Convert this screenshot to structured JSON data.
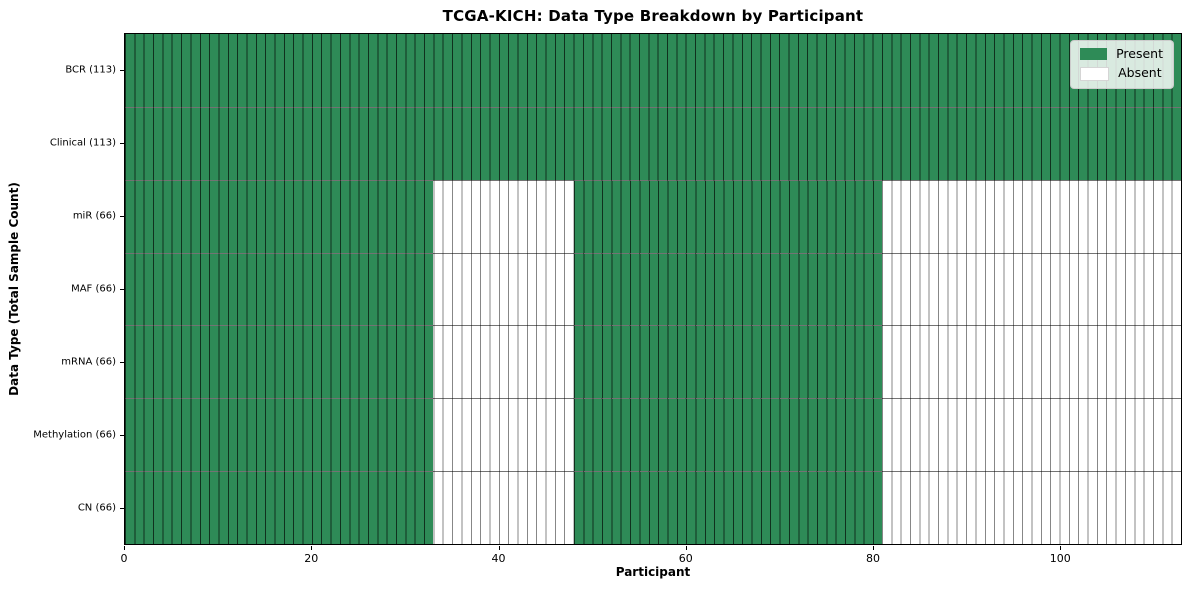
{
  "chart_data": {
    "type": "heatmap",
    "title": "TCGA-KICH: Data Type Breakdown by Participant",
    "xlabel": "Participant",
    "ylabel": "Data Type (Total Sample Count)",
    "xlim": [
      0,
      113
    ],
    "n_participants": 113,
    "x_ticks": [
      0,
      20,
      40,
      60,
      80,
      100
    ],
    "grid": "per-cell edges",
    "legend": {
      "position": "upper right",
      "entries": [
        {
          "label": "Present",
          "color": "#2e8b57"
        },
        {
          "label": "Absent",
          "color": "#ffffff"
        }
      ]
    },
    "rows": [
      {
        "label": "BCR (113)",
        "data_type": "BCR",
        "total_samples": 113,
        "present_ranges": [
          [
            0,
            113
          ]
        ]
      },
      {
        "label": "Clinical (113)",
        "data_type": "Clinical",
        "total_samples": 113,
        "present_ranges": [
          [
            0,
            113
          ]
        ]
      },
      {
        "label": "miR (66)",
        "data_type": "miR",
        "total_samples": 66,
        "present_ranges": [
          [
            0,
            33
          ],
          [
            48,
            81
          ]
        ]
      },
      {
        "label": "MAF (66)",
        "data_type": "MAF",
        "total_samples": 66,
        "present_ranges": [
          [
            0,
            33
          ],
          [
            48,
            81
          ]
        ]
      },
      {
        "label": "mRNA (66)",
        "data_type": "mRNA",
        "total_samples": 66,
        "present_ranges": [
          [
            0,
            33
          ],
          [
            48,
            81
          ]
        ]
      },
      {
        "label": "Methylation (66)",
        "data_type": "Methylation",
        "total_samples": 66,
        "present_ranges": [
          [
            0,
            33
          ],
          [
            48,
            81
          ]
        ]
      },
      {
        "label": "CN (66)",
        "data_type": "CN",
        "total_samples": 66,
        "present_ranges": [
          [
            0,
            33
          ],
          [
            48,
            81
          ]
        ]
      }
    ],
    "colors": {
      "present": "#2e8b57",
      "absent": "#ffffff",
      "cell_edge_on_present": "rgba(0,0,0,0.65)",
      "cell_edge_on_absent": "rgba(0,0,0,0.47)",
      "row_separator": "rgba(0,0,0,0.55)",
      "axes_border": "#000000"
    }
  }
}
